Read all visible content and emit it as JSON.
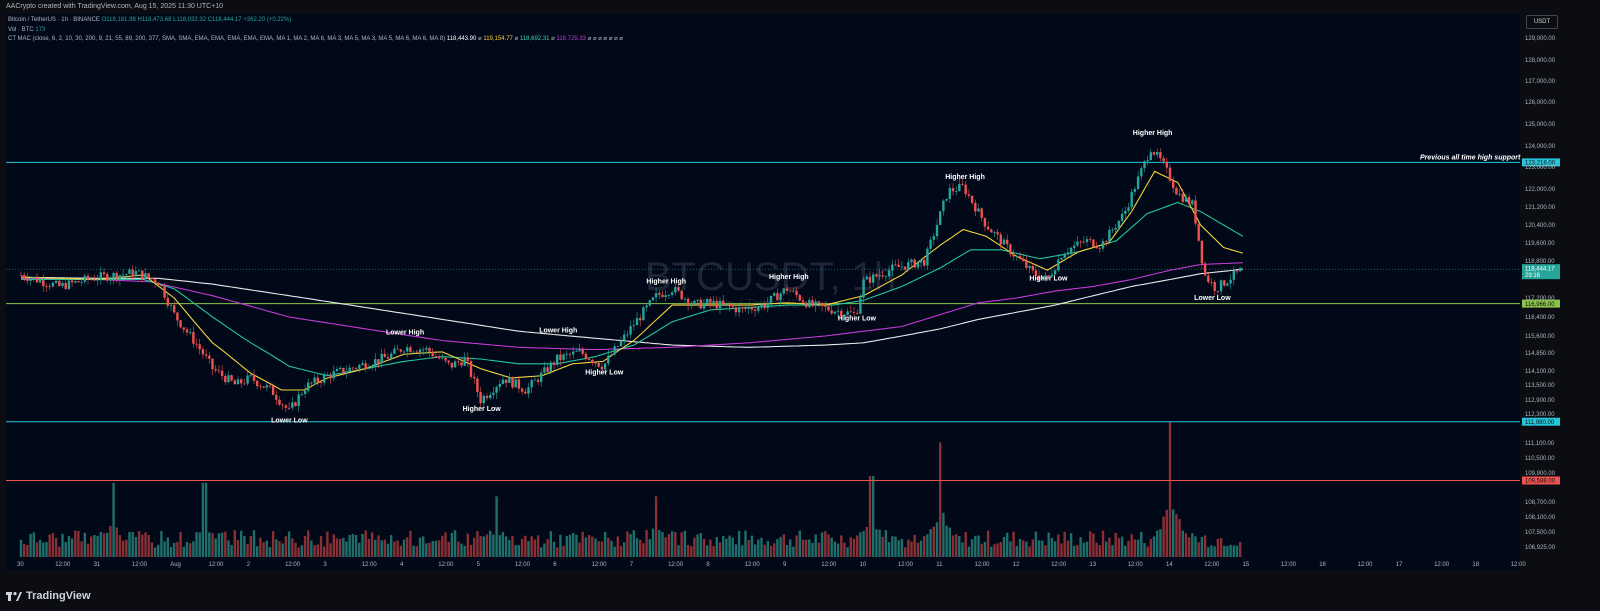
{
  "attribution": "AACrypto created with TradingView.com, Aug 15, 2025 11:30 UTC+10",
  "legend": {
    "line1_symbol": "Bitcoin / TetherUS · 1h · BINANCE",
    "line1_o": "O118,181.98",
    "line1_h": "H118,473.68",
    "line1_l": "L118,032.32",
    "line1_c": "C118,444.17",
    "line1_chg": "+262.20 (+0.22%)",
    "line2_label": "Vol · BTC",
    "line2_val": "173",
    "line3_label": "CT MAC (close, 6, 2, 10, 30, 200, 9, 21, 55, 89, 200, 377, SMA, SMA, EMA, EMA, EMA, EMA, EMA, MA 1, MA 2, MA 6, MA 3, MA 5, MA 3, MA 5, MA 6, MA 6, MA 8)",
    "line3_v1": "118,443.90",
    "line3_v2": "119,154.77",
    "line3_v3": "118,692.31",
    "line3_v4": "118,725.33",
    "line3_dots": "⌀ ⌀ ⌀ ⌀ ⌀ ⌀ ⌀"
  },
  "currency": "USDT",
  "watermark": {
    "symbol": "BTCUSDT, 1h",
    "name": "Bitcoin / TetherUS"
  },
  "brand": "TradingView",
  "colors": {
    "bg": "#010818",
    "up": "#26a69a",
    "down": "#ef5350",
    "ema_fast": "#f5d33a",
    "ema_mid": "#22c59a",
    "ma_purple": "#c23ad6",
    "ma_white": "#e8e8e8",
    "level_cyan": "#26c6da",
    "level_green": "#8bc34a",
    "level_red": "#ef5350"
  },
  "chart_data": {
    "type": "candlestick",
    "timeframe": "1h",
    "x_ticks": [
      "30",
      "12:00",
      "31",
      "12:00",
      "Aug",
      "12:00",
      "2",
      "12:00",
      "3",
      "12:00",
      "4",
      "12:00",
      "5",
      "12:00",
      "6",
      "12:00",
      "7",
      "12:00",
      "8",
      "12:00",
      "9",
      "12:00",
      "10",
      "12:00",
      "11",
      "12:00",
      "12",
      "12:00",
      "13",
      "12:00",
      "14",
      "12:00",
      "15",
      "12:00",
      "16",
      "12:00",
      "17",
      "12:00",
      "18",
      "12:00"
    ],
    "y_ticks": [
      {
        "label": "129,000.00",
        "value": 129000
      },
      {
        "label": "128,000.00",
        "value": 128000
      },
      {
        "label": "127,000.00",
        "value": 127000
      },
      {
        "label": "126,000.00",
        "value": 126000
      },
      {
        "label": "125,000.00",
        "value": 125000
      },
      {
        "label": "124,000.00",
        "value": 124000
      },
      {
        "label": "123,000.00",
        "value": 123000
      },
      {
        "label": "122,000.00",
        "value": 122000
      },
      {
        "label": "121,200.00",
        "value": 121200
      },
      {
        "label": "120,400.00",
        "value": 120400
      },
      {
        "label": "119,600.00",
        "value": 119600
      },
      {
        "label": "118,800.00",
        "value": 118800
      },
      {
        "label": "117,200.00",
        "value": 117200
      },
      {
        "label": "116,400.00",
        "value": 116400
      },
      {
        "label": "115,600.00",
        "value": 115600
      },
      {
        "label": "114,850.00",
        "value": 114850
      },
      {
        "label": "114,100.00",
        "value": 114100
      },
      {
        "label": "113,500.00",
        "value": 113500
      },
      {
        "label": "112,900.00",
        "value": 112900
      },
      {
        "label": "112,300.00",
        "value": 112300
      },
      {
        "label": "111,100.00",
        "value": 111100
      },
      {
        "label": "110,500.00",
        "value": 110500
      },
      {
        "label": "109,900.00",
        "value": 109900
      },
      {
        "label": "108,700.00",
        "value": 108700
      },
      {
        "label": "108,100.00",
        "value": 108100
      },
      {
        "label": "107,500.00",
        "value": 107500
      },
      {
        "label": "106,925.00",
        "value": 106925
      }
    ],
    "levels": [
      {
        "label": "123,218.00",
        "value": 123218,
        "color": "#26c6da",
        "note": "Previous all time high support"
      },
      {
        "label": "116,966.00",
        "value": 116966,
        "color": "#8bc34a"
      },
      {
        "label": "111,980.00",
        "value": 111980,
        "color": "#26c6da"
      },
      {
        "label": "109,588.00",
        "value": 109588,
        "color": "#ef5350"
      }
    ],
    "last_price": {
      "label": "118,444.17",
      "countdown": "29:16"
    },
    "annotations": [
      {
        "text": "Lower Low",
        "time": 3.5,
        "price": 111950
      },
      {
        "text": "Lower High",
        "time": 5.0,
        "price": 115660
      },
      {
        "text": "Higher Low",
        "time": 6.0,
        "price": 112420
      },
      {
        "text": "Lower High",
        "time": 7.0,
        "price": 115750
      },
      {
        "text": "Higher Low",
        "time": 7.6,
        "price": 113950
      },
      {
        "text": "Higher High",
        "time": 8.4,
        "price": 117820
      },
      {
        "text": "Higher High",
        "time": 10.0,
        "price": 118030
      },
      {
        "text": "Higher Low",
        "time": 10.9,
        "price": 116250
      },
      {
        "text": "Higher High",
        "time": 12.3,
        "price": 122450
      },
      {
        "text": "Higher Low",
        "time": 13.4,
        "price": 117950
      },
      {
        "text": "Higher High",
        "time": 14.75,
        "price": 124500
      },
      {
        "text": "Lower Low",
        "time": 15.55,
        "price": 117120
      }
    ],
    "price_path": [
      [
        0,
        118200
      ],
      [
        0.5,
        117700
      ],
      [
        1,
        118100
      ],
      [
        1.5,
        118300
      ],
      [
        1.8,
        117900
      ],
      [
        2,
        116500
      ],
      [
        2.3,
        115200
      ],
      [
        2.5,
        114200
      ],
      [
        2.8,
        113500
      ],
      [
        3,
        113800
      ],
      [
        3.3,
        113200
      ],
      [
        3.5,
        112400
      ],
      [
        3.7,
        113400
      ],
      [
        4,
        113900
      ],
      [
        4.4,
        114300
      ],
      [
        4.8,
        114700
      ],
      [
        5,
        115100
      ],
      [
        5.3,
        115000
      ],
      [
        5.6,
        114300
      ],
      [
        5.8,
        114600
      ],
      [
        6,
        112900
      ],
      [
        6.3,
        113800
      ],
      [
        6.6,
        113300
      ],
      [
        7,
        114600
      ],
      [
        7.3,
        114900
      ],
      [
        7.6,
        114300
      ],
      [
        8,
        116100
      ],
      [
        8.3,
        117300
      ],
      [
        8.5,
        117600
      ],
      [
        8.8,
        116900
      ],
      [
        9,
        117000
      ],
      [
        9.4,
        116700
      ],
      [
        9.7,
        116900
      ],
      [
        10,
        117600
      ],
      [
        10.3,
        116900
      ],
      [
        10.6,
        116700
      ],
      [
        10.9,
        116500
      ],
      [
        11,
        117900
      ],
      [
        11.4,
        118500
      ],
      [
        11.8,
        118800
      ],
      [
        12.1,
        121900
      ],
      [
        12.3,
        122100
      ],
      [
        12.6,
        120400
      ],
      [
        12.9,
        119300
      ],
      [
        13.2,
        118300
      ],
      [
        13.4,
        118000
      ],
      [
        13.6,
        119200
      ],
      [
        13.9,
        119700
      ],
      [
        14.1,
        119500
      ],
      [
        14.4,
        120900
      ],
      [
        14.6,
        122600
      ],
      [
        14.75,
        123900
      ],
      [
        14.9,
        123200
      ],
      [
        15.1,
        121800
      ],
      [
        15.3,
        121300
      ],
      [
        15.45,
        118200
      ],
      [
        15.6,
        117600
      ],
      [
        15.8,
        118100
      ],
      [
        15.95,
        118444
      ]
    ],
    "ema_fast": [
      [
        0,
        118100
      ],
      [
        1,
        118000
      ],
      [
        1.6,
        118200
      ],
      [
        2,
        117200
      ],
      [
        2.5,
        115300
      ],
      [
        3,
        114000
      ],
      [
        3.4,
        113300
      ],
      [
        3.7,
        113300
      ],
      [
        4,
        113800
      ],
      [
        4.5,
        114200
      ],
      [
        5,
        114800
      ],
      [
        5.5,
        114900
      ],
      [
        6,
        114200
      ],
      [
        6.4,
        113800
      ],
      [
        6.8,
        113900
      ],
      [
        7.2,
        114400
      ],
      [
        7.6,
        114500
      ],
      [
        8,
        115400
      ],
      [
        8.5,
        116900
      ],
      [
        9,
        116900
      ],
      [
        9.5,
        116900
      ],
      [
        10,
        117000
      ],
      [
        10.5,
        116900
      ],
      [
        11,
        117300
      ],
      [
        11.5,
        118200
      ],
      [
        12,
        119500
      ],
      [
        12.3,
        120200
      ],
      [
        12.6,
        119900
      ],
      [
        13,
        119000
      ],
      [
        13.4,
        118400
      ],
      [
        13.8,
        119200
      ],
      [
        14.2,
        119600
      ],
      [
        14.5,
        121000
      ],
      [
        14.8,
        122800
      ],
      [
        15.1,
        122300
      ],
      [
        15.4,
        120400
      ],
      [
        15.7,
        119400
      ],
      [
        15.95,
        119150
      ]
    ],
    "ema_mid": [
      [
        0,
        118000
      ],
      [
        1,
        118000
      ],
      [
        1.6,
        118000
      ],
      [
        2,
        117600
      ],
      [
        2.5,
        116400
      ],
      [
        3,
        115300
      ],
      [
        3.5,
        114300
      ],
      [
        4,
        113900
      ],
      [
        4.5,
        114200
      ],
      [
        5,
        114500
      ],
      [
        5.5,
        114700
      ],
      [
        6,
        114600
      ],
      [
        6.5,
        114400
      ],
      [
        7,
        114400
      ],
      [
        7.5,
        114700
      ],
      [
        8,
        115200
      ],
      [
        8.5,
        116200
      ],
      [
        9,
        116700
      ],
      [
        9.5,
        116800
      ],
      [
        10,
        116900
      ],
      [
        10.6,
        116900
      ],
      [
        11,
        117100
      ],
      [
        11.5,
        117700
      ],
      [
        12,
        118500
      ],
      [
        12.4,
        119300
      ],
      [
        12.8,
        119300
      ],
      [
        13.3,
        118900
      ],
      [
        13.8,
        119200
      ],
      [
        14.3,
        119700
      ],
      [
        14.7,
        120900
      ],
      [
        15.1,
        121400
      ],
      [
        15.4,
        121000
      ],
      [
        15.7,
        120400
      ],
      [
        15.95,
        119900
      ]
    ],
    "ma_purple": [
      [
        0,
        118050
      ],
      [
        1,
        118000
      ],
      [
        1.7,
        117900
      ],
      [
        2.5,
        117300
      ],
      [
        3.5,
        116400
      ],
      [
        4.5,
        115900
      ],
      [
        5.5,
        115400
      ],
      [
        6.5,
        115100
      ],
      [
        7.5,
        115000
      ],
      [
        8.5,
        115100
      ],
      [
        9.5,
        115300
      ],
      [
        10.5,
        115600
      ],
      [
        11,
        115800
      ],
      [
        11.5,
        116000
      ],
      [
        12,
        116500
      ],
      [
        12.5,
        117000
      ],
      [
        13,
        117200
      ],
      [
        13.5,
        117500
      ],
      [
        14,
        117700
      ],
      [
        14.5,
        118000
      ],
      [
        15,
        118400
      ],
      [
        15.4,
        118650
      ],
      [
        15.95,
        118725
      ]
    ],
    "ma_white": [
      [
        0,
        118100
      ],
      [
        1,
        118050
      ],
      [
        1.8,
        118050
      ],
      [
        2.5,
        117800
      ],
      [
        3.5,
        117300
      ],
      [
        4.5,
        116800
      ],
      [
        5.5,
        116300
      ],
      [
        6.5,
        115800
      ],
      [
        7.5,
        115500
      ],
      [
        8.5,
        115200
      ],
      [
        9.5,
        115100
      ],
      [
        10.5,
        115200
      ],
      [
        11,
        115300
      ],
      [
        11.5,
        115600
      ],
      [
        12,
        115900
      ],
      [
        12.5,
        116300
      ],
      [
        13,
        116600
      ],
      [
        13.5,
        116900
      ],
      [
        14,
        117300
      ],
      [
        14.5,
        117700
      ],
      [
        15,
        118000
      ],
      [
        15.4,
        118250
      ],
      [
        15.95,
        118444
      ]
    ],
    "volume_peaks": [
      {
        "time": 1.2,
        "rel": 0.55
      },
      {
        "time": 2.4,
        "rel": 0.55
      },
      {
        "time": 6.2,
        "rel": 0.45
      },
      {
        "time": 8.3,
        "rel": 0.45
      },
      {
        "time": 11.1,
        "rel": 0.6
      },
      {
        "time": 12.0,
        "rel": 0.85
      },
      {
        "time": 15.0,
        "rel": 1.0
      }
    ]
  }
}
